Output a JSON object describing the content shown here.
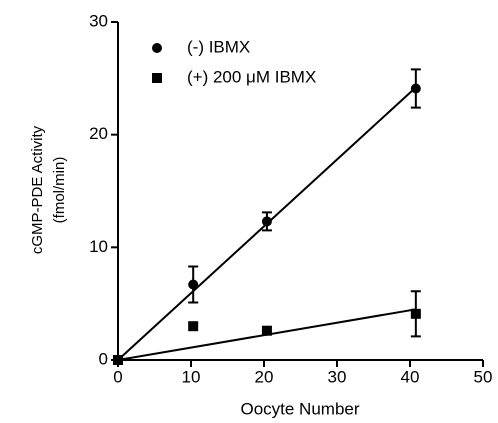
{
  "chart_data": {
    "type": "scatter",
    "xlabel": "Oocyte Number",
    "ylabel": [
      "cGMP-PDE Activity",
      "(fmol/min)"
    ],
    "xlim": [
      0,
      50
    ],
    "xticks": [
      0,
      10,
      20,
      30,
      40,
      50
    ],
    "ylim": [
      0,
      30
    ],
    "yticks": [
      0,
      10,
      20,
      30
    ],
    "legend": "upper left",
    "series": [
      {
        "name": "(-) IBMX",
        "marker": "circle",
        "color": "#000000",
        "x": [
          0,
          10.3,
          20.4,
          40.8
        ],
        "values": [
          0,
          6.7,
          12.3,
          24.1
        ],
        "errors": [
          null,
          1.6,
          0.8,
          1.7
        ],
        "fit": {
          "x": [
            0,
            40.8
          ],
          "y": [
            0,
            24.2
          ]
        }
      },
      {
        "name": "(+) 200  μM IBMX",
        "marker": "square",
        "color": "#000000",
        "x": [
          0,
          10.3,
          20.4,
          40.8
        ],
        "values": [
          0,
          3.0,
          2.6,
          4.1
        ],
        "errors": [
          null,
          null,
          null,
          2.0
        ],
        "fit": {
          "x": [
            0,
            40.8
          ],
          "y": [
            0,
            4.5
          ]
        }
      }
    ]
  }
}
